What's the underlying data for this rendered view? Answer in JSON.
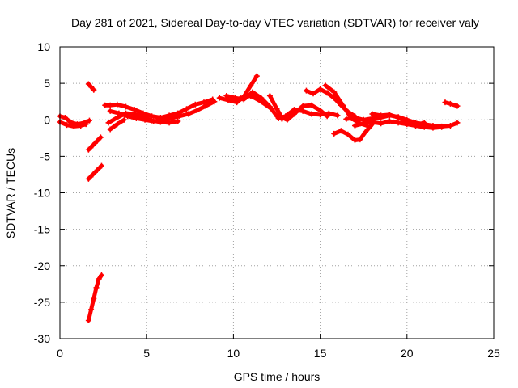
{
  "chart_data": {
    "type": "scatter",
    "title": "Day 281 of 2021, Sidereal Day-to-day VTEC variation (SDTVAR) for receiver valy",
    "xlabel": "GPS time / hours",
    "ylabel": "SDTVAR / TECUs",
    "xlim": [
      0,
      25
    ],
    "ylim": [
      -30,
      10
    ],
    "xticks": [
      0,
      5,
      10,
      15,
      20,
      25
    ],
    "yticks": [
      -30,
      -25,
      -20,
      -15,
      -10,
      -5,
      0,
      5,
      10
    ],
    "grid": true,
    "series": [
      {
        "name": "SDTVAR",
        "color": "#ff0000",
        "marker": "plus",
        "tracks": [
          [
            [
              0.0,
              0.5
            ],
            [
              0.3,
              0.3
            ],
            [
              0.6,
              -0.3
            ],
            [
              1.0,
              -0.6
            ],
            [
              1.4,
              -0.4
            ],
            [
              1.7,
              -0.1
            ]
          ],
          [
            [
              0.0,
              -0.3
            ],
            [
              0.4,
              -0.7
            ],
            [
              0.8,
              -0.9
            ],
            [
              1.2,
              -0.8
            ],
            [
              1.5,
              -0.6
            ]
          ],
          [
            [
              1.65,
              4.9
            ],
            [
              1.8,
              4.5
            ],
            [
              1.95,
              4.1
            ]
          ],
          [
            [
              1.65,
              -4.1
            ],
            [
              1.9,
              -3.5
            ],
            [
              2.15,
              -2.9
            ],
            [
              2.35,
              -2.4
            ]
          ],
          [
            [
              1.65,
              -8.1
            ],
            [
              1.9,
              -7.5
            ],
            [
              2.15,
              -6.9
            ],
            [
              2.4,
              -6.3
            ]
          ],
          [
            [
              1.65,
              -27.5
            ],
            [
              1.8,
              -26.0
            ],
            [
              1.95,
              -24.5
            ],
            [
              2.1,
              -23.0
            ],
            [
              2.25,
              -21.8
            ],
            [
              2.4,
              -21.3
            ]
          ],
          [
            [
              2.6,
              2.0
            ],
            [
              2.9,
              2.0
            ],
            [
              3.3,
              2.1
            ],
            [
              3.8,
              1.8
            ],
            [
              4.3,
              1.4
            ],
            [
              4.8,
              0.9
            ],
            [
              5.3,
              0.5
            ],
            [
              5.8,
              0.3
            ],
            [
              6.3,
              0.6
            ],
            [
              6.8,
              0.9
            ],
            [
              7.3,
              1.5
            ],
            [
              7.8,
              2.1
            ],
            [
              8.3,
              2.4
            ],
            [
              8.8,
              2.8
            ]
          ],
          [
            [
              2.9,
              1.2
            ],
            [
              3.4,
              0.9
            ],
            [
              3.9,
              0.5
            ],
            [
              4.4,
              0.2
            ],
            [
              4.9,
              0.0
            ],
            [
              5.4,
              -0.2
            ],
            [
              5.9,
              0.0
            ],
            [
              6.4,
              0.2
            ],
            [
              6.9,
              0.5
            ],
            [
              7.4,
              0.8
            ],
            [
              7.9,
              1.3
            ],
            [
              8.4,
              1.9
            ],
            [
              8.9,
              2.5
            ]
          ],
          [
            [
              2.8,
              -0.4
            ],
            [
              3.3,
              0.3
            ],
            [
              3.8,
              0.9
            ],
            [
              4.3,
              0.8
            ],
            [
              4.8,
              0.4
            ],
            [
              5.3,
              -0.1
            ],
            [
              5.8,
              -0.3
            ],
            [
              6.3,
              -0.4
            ],
            [
              6.8,
              -0.2
            ]
          ],
          [
            [
              2.9,
              -1.3
            ],
            [
              3.3,
              -0.6
            ],
            [
              3.7,
              0.0
            ]
          ],
          [
            [
              9.2,
              3.0
            ],
            [
              9.7,
              2.7
            ],
            [
              10.2,
              2.4
            ],
            [
              10.6,
              3.2
            ],
            [
              11.0,
              4.7
            ],
            [
              11.35,
              6.0
            ]
          ],
          [
            [
              9.6,
              3.3
            ],
            [
              10.1,
              3.0
            ],
            [
              10.6,
              2.8
            ],
            [
              11.1,
              3.8
            ],
            [
              11.6,
              3.0
            ],
            [
              12.1,
              1.8
            ],
            [
              12.5,
              0.5
            ],
            [
              12.8,
              0.1
            ]
          ],
          [
            [
              10.4,
              3.0
            ],
            [
              11.0,
              3.3
            ],
            [
              11.6,
              2.5
            ],
            [
              12.2,
              1.5
            ]
          ],
          [
            [
              12.1,
              3.3
            ],
            [
              12.5,
              1.5
            ],
            [
              12.8,
              0.3
            ],
            [
              13.1,
              0.0
            ],
            [
              13.5,
              0.8
            ],
            [
              14.0,
              1.9
            ],
            [
              14.5,
              2.0
            ],
            [
              15.0,
              1.3
            ],
            [
              15.4,
              0.5
            ]
          ],
          [
            [
              12.6,
              0.2
            ],
            [
              13.0,
              0.5
            ],
            [
              13.5,
              1.4
            ],
            [
              14.0,
              1.2
            ],
            [
              14.5,
              0.8
            ],
            [
              15.0,
              0.7
            ],
            [
              15.5,
              0.9
            ],
            [
              16.0,
              0.6
            ]
          ],
          [
            [
              14.2,
              4.0
            ],
            [
              14.6,
              3.6
            ],
            [
              15.0,
              4.2
            ],
            [
              15.4,
              3.7
            ],
            [
              15.8,
              3.0
            ],
            [
              16.2,
              2.0
            ],
            [
              16.6,
              1.1
            ],
            [
              17.0,
              0.5
            ]
          ],
          [
            [
              15.3,
              4.7
            ],
            [
              15.8,
              3.8
            ],
            [
              16.3,
              2.0
            ],
            [
              16.8,
              0.2
            ],
            [
              17.3,
              -0.5
            ],
            [
              17.7,
              -0.8
            ]
          ],
          [
            [
              15.8,
              -1.9
            ],
            [
              16.2,
              -1.5
            ],
            [
              16.6,
              -2.0
            ],
            [
              17.0,
              -2.8
            ],
            [
              17.3,
              -2.7
            ],
            [
              17.6,
              -1.7
            ],
            [
              18.0,
              -0.6
            ]
          ],
          [
            [
              16.5,
              0.1
            ],
            [
              17.0,
              0.3
            ],
            [
              17.5,
              0.0
            ],
            [
              18.0,
              0.2
            ],
            [
              18.5,
              0.3
            ],
            [
              19.0,
              0.6
            ],
            [
              19.5,
              0.4
            ],
            [
              20.0,
              0.0
            ],
            [
              20.5,
              -0.4
            ],
            [
              21.0,
              -0.6
            ],
            [
              21.5,
              -0.8
            ],
            [
              22.0,
              -0.9
            ],
            [
              22.5,
              -0.8
            ],
            [
              22.9,
              -0.4
            ]
          ],
          [
            [
              17.0,
              -0.8
            ],
            [
              17.5,
              -0.5
            ],
            [
              18.0,
              -0.3
            ],
            [
              18.5,
              -0.5
            ],
            [
              19.0,
              -0.2
            ],
            [
              19.5,
              -0.4
            ],
            [
              20.0,
              -0.6
            ],
            [
              20.5,
              -0.8
            ],
            [
              21.0,
              -1.0
            ],
            [
              21.5,
              -1.1
            ],
            [
              22.0,
              -1.0
            ]
          ],
          [
            [
              18.0,
              0.8
            ],
            [
              18.5,
              0.6
            ],
            [
              19.0,
              0.7
            ],
            [
              19.5,
              0.3
            ],
            [
              20.0,
              -0.3
            ],
            [
              20.5,
              -0.7
            ],
            [
              21.0,
              -0.4
            ]
          ],
          [
            [
              22.2,
              2.4
            ],
            [
              22.5,
              2.2
            ],
            [
              22.9,
              1.9
            ]
          ]
        ]
      }
    ]
  }
}
